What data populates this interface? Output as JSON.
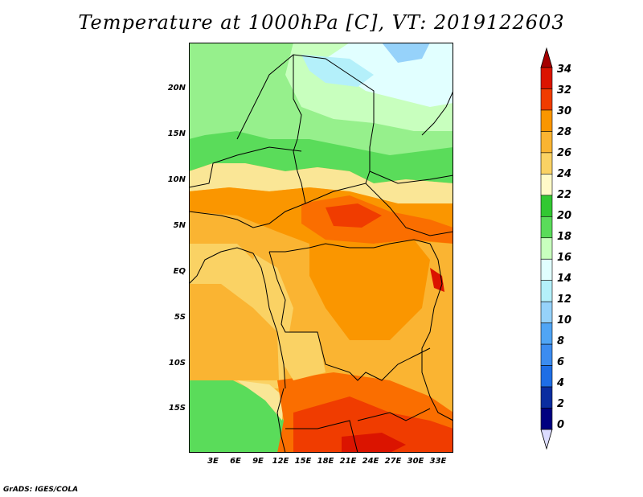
{
  "title": "Temperature at 1000hPa [C], VT: 2019122603",
  "credit": "GrADS: IGES/COLA",
  "lat_labels": [
    "20N",
    "15N",
    "10N",
    "5N",
    "EQ",
    "5S",
    "10S",
    "15S"
  ],
  "lon_labels": [
    "3E",
    "6E",
    "9E",
    "12E",
    "15E",
    "18E",
    "21E",
    "24E",
    "27E",
    "30E",
    "33E"
  ],
  "colorbar": {
    "labels": [
      "34",
      "32",
      "30",
      "28",
      "26",
      "24",
      "22",
      "20",
      "18",
      "16",
      "14",
      "12",
      "10",
      "8",
      "6",
      "4",
      "2",
      "0"
    ],
    "colors": [
      "#a50000",
      "#db1400",
      "#f03c00",
      "#fa6e00",
      "#fa9600",
      "#fab432",
      "#fad264",
      "#fae696",
      "#fffac8",
      "#32c832",
      "#5adc5a",
      "#96f08c",
      "#c8ffbe",
      "#e1ffff",
      "#b4f0fa",
      "#96d2fa",
      "#78b9fa",
      "#50a5f5",
      "#3c8cf0",
      "#1e6ee6",
      "#1450c8",
      "#0a2da0",
      "#000080",
      "#dcdcff"
    ]
  }
}
